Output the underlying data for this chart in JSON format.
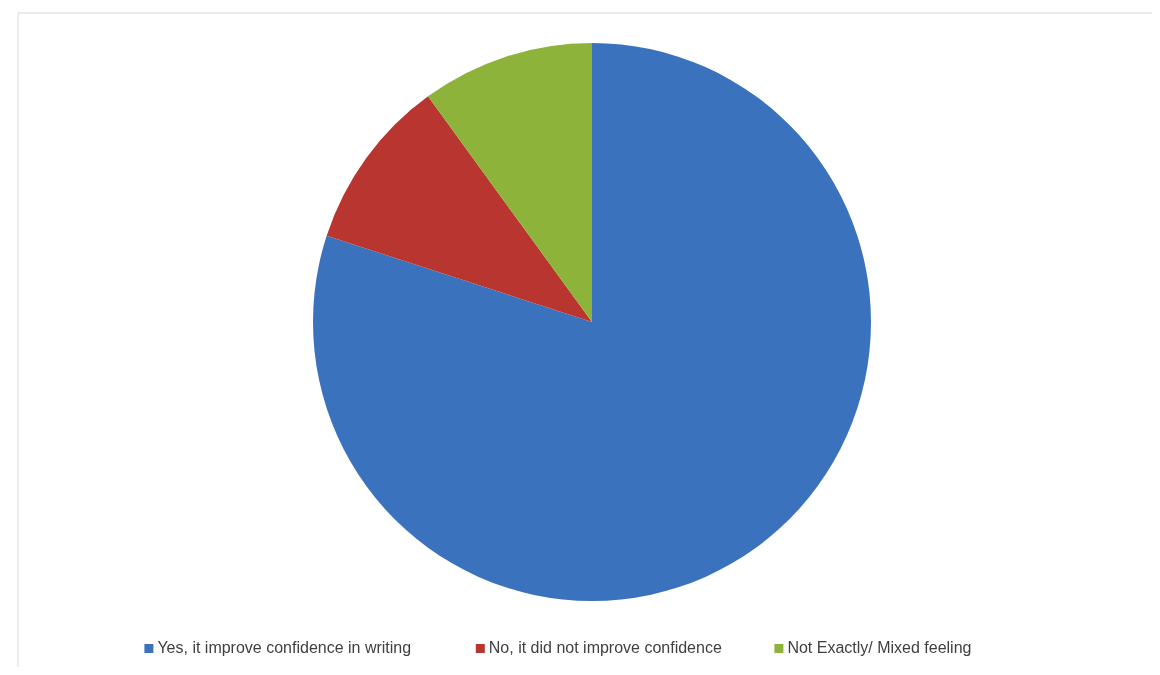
{
  "chart_data": {
    "type": "pie",
    "categories": [
      "Yes, it improve confidence in writing",
      "No, it did not improve confidence",
      "Not Exactly/ Mixed feeling"
    ],
    "values": [
      80,
      10,
      10
    ],
    "colors": [
      "#3a72bd",
      "#b8362f",
      "#8db33a"
    ],
    "legend": "bottom"
  }
}
